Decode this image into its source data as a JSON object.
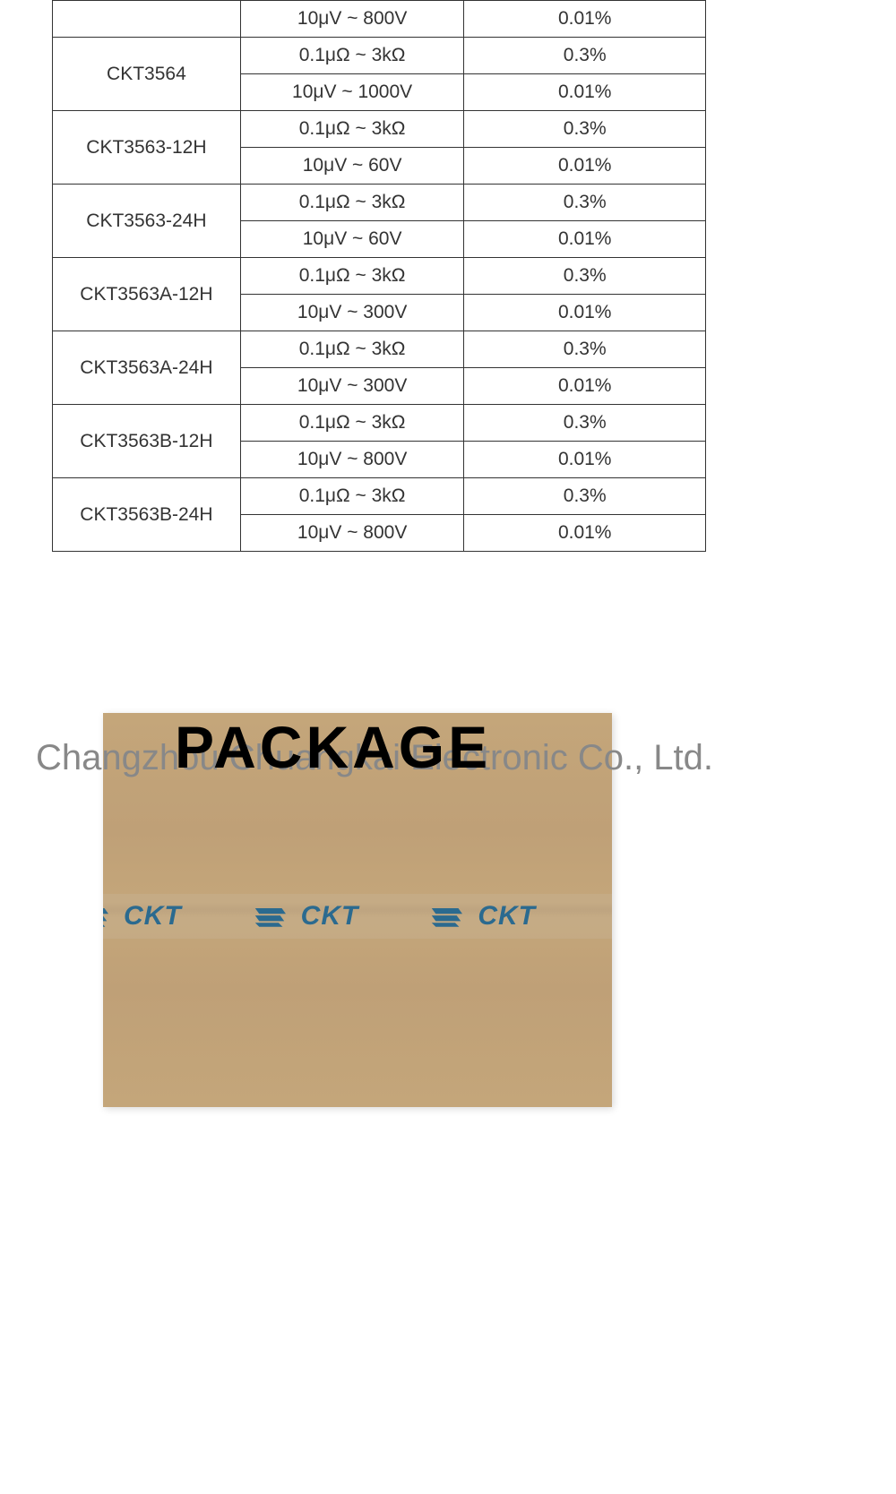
{
  "table": {
    "rows": [
      {
        "model": "",
        "range": "10μV ~ 800V",
        "accuracy": "0.01%"
      },
      {
        "model": "CKT3564",
        "range": "0.1μΩ ~ 3kΩ",
        "accuracy": "0.3%"
      },
      {
        "model": "",
        "range": "10μV ~ 1000V",
        "accuracy": "0.01%"
      },
      {
        "model": "CKT3563-12H",
        "range": "0.1μΩ ~ 3kΩ",
        "accuracy": "0.3%"
      },
      {
        "model": "",
        "range": "10μV ~ 60V",
        "accuracy": "0.01%"
      },
      {
        "model": "CKT3563-24H",
        "range": "0.1μΩ ~ 3kΩ",
        "accuracy": "0.3%"
      },
      {
        "model": "",
        "range": "10μV ~ 60V",
        "accuracy": "0.01%"
      },
      {
        "model": "CKT3563A-12H",
        "range": "0.1μΩ ~ 3kΩ",
        "accuracy": "0.3%"
      },
      {
        "model": "",
        "range": "10μV ~ 300V",
        "accuracy": "0.01%"
      },
      {
        "model": "CKT3563A-24H",
        "range": "0.1μΩ ~ 3kΩ",
        "accuracy": "0.3%"
      },
      {
        "model": "",
        "range": "10μV ~ 300V",
        "accuracy": "0.01%"
      },
      {
        "model": "CKT3563B-12H",
        "range": "0.1μΩ ~ 3kΩ",
        "accuracy": "0.3%"
      },
      {
        "model": "",
        "range": "10μV ~ 800V",
        "accuracy": "0.01%"
      },
      {
        "model": "CKT3563B-24H",
        "range": "0.1μΩ ~ 3kΩ",
        "accuracy": "0.3%"
      },
      {
        "model": "",
        "range": "10μV ~ 800V",
        "accuracy": "0.01%"
      }
    ]
  },
  "package": {
    "title": "PACKAGE",
    "watermark": "Changzhou Chuangkai Electronic Co., Ltd.",
    "box_logo_text": "CKT",
    "box_color": "#c4a67a",
    "logo_color": "#2b6a8f"
  }
}
